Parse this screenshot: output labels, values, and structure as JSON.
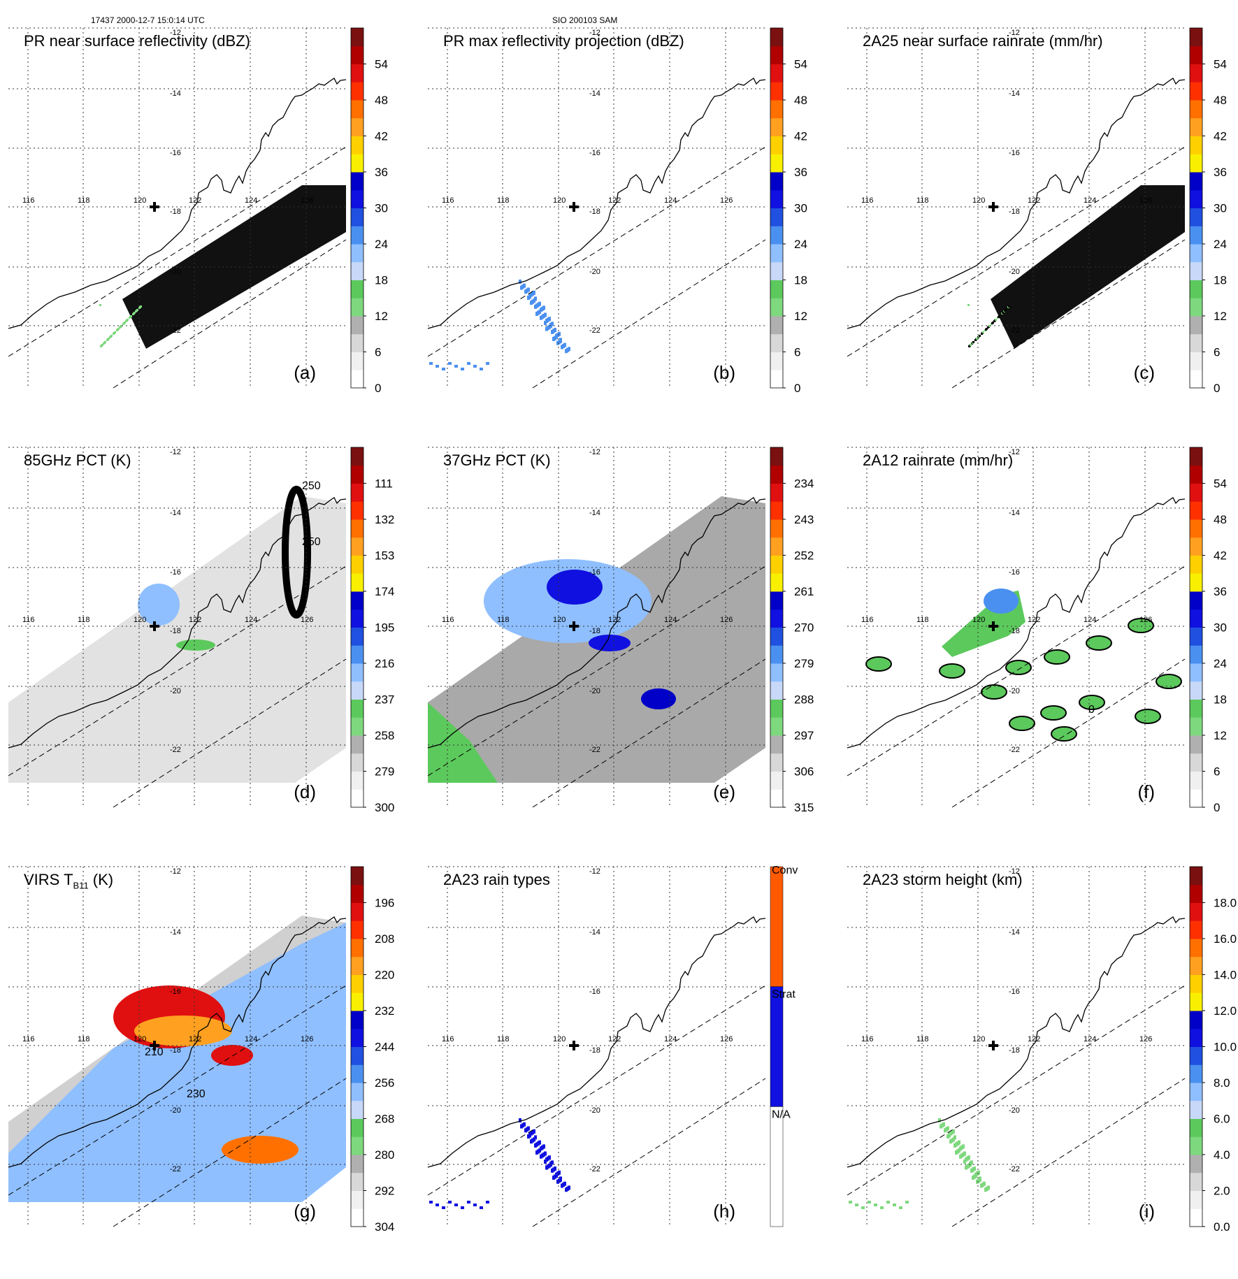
{
  "header": {
    "left": "17437 2000-12-7 15:0:14 UTC",
    "center": "SIO 200103 SAM"
  },
  "map": {
    "lon_ticks": [
      "116",
      "118",
      "120",
      "122",
      "124",
      "126"
    ],
    "lat_ticks": [
      "-12",
      "-14",
      "-16",
      "-18",
      "-20",
      "-22"
    ],
    "storm_marker": "plus-icon"
  },
  "chart_data": [
    {
      "id": "a",
      "type": "heatmap",
      "title": "PR near surface reflectivity (dBZ)",
      "label": "(a)",
      "colorbar": {
        "ticks": [
          "0",
          "6",
          "12",
          "18",
          "24",
          "30",
          "36",
          "42",
          "48",
          "54"
        ],
        "range": [
          0,
          60
        ]
      },
      "swath_blanked": true
    },
    {
      "id": "b",
      "type": "heatmap",
      "title": "PR max reflectivity projection (dBZ)",
      "label": "(b)",
      "colorbar": {
        "ticks": [
          "0",
          "6",
          "12",
          "18",
          "24",
          "30",
          "36",
          "42",
          "48",
          "54"
        ],
        "range": [
          0,
          60
        ]
      }
    },
    {
      "id": "c",
      "type": "heatmap",
      "title": "2A25 near surface rainrate (mm/hr)",
      "label": "(c)",
      "colorbar": {
        "ticks": [
          "0",
          "6",
          "12",
          "18",
          "24",
          "30",
          "36",
          "42",
          "48",
          "54"
        ],
        "range": [
          0,
          60
        ]
      },
      "swath_blanked": true
    },
    {
      "id": "d",
      "type": "heatmap",
      "title": "85GHz PCT (K)",
      "label": "(d)",
      "colorbar": {
        "ticks": [
          "300",
          "279",
          "258",
          "237",
          "216",
          "195",
          "174",
          "153",
          "132",
          "111"
        ],
        "range": [
          300,
          90
        ]
      },
      "contour_labels": [
        "250",
        "250"
      ]
    },
    {
      "id": "e",
      "type": "heatmap",
      "title": "37GHz PCT (K)",
      "label": "(e)",
      "colorbar": {
        "ticks": [
          "315",
          "306",
          "297",
          "288",
          "279",
          "270",
          "261",
          "252",
          "243",
          "234"
        ],
        "range": [
          315,
          225
        ]
      }
    },
    {
      "id": "f",
      "type": "heatmap",
      "title": "2A12 rainrate (mm/hr)",
      "label": "(f)",
      "colorbar": {
        "ticks": [
          "0",
          "6",
          "12",
          "18",
          "24",
          "30",
          "36",
          "42",
          "48",
          "54"
        ],
        "range": [
          0,
          60
        ]
      },
      "contour_labels": [
        "0"
      ]
    },
    {
      "id": "g",
      "type": "heatmap",
      "title": "VIRS T",
      "title_sub": "B11",
      "title_unit": " (K)",
      "label": "(g)",
      "colorbar": {
        "ticks": [
          "304",
          "292",
          "280",
          "268",
          "256",
          "244",
          "232",
          "220",
          "208",
          "196"
        ],
        "range": [
          304,
          184
        ]
      },
      "contour_labels": [
        "210",
        "230"
      ]
    },
    {
      "id": "h",
      "type": "heatmap",
      "title": "2A23 rain types",
      "label": "(h)",
      "colorbar": {
        "categorical": true,
        "categories": [
          "N/A",
          "Strat",
          "Conv"
        ]
      }
    },
    {
      "id": "i",
      "type": "heatmap",
      "title": "2A23 storm height (km)",
      "label": "(i)",
      "colorbar": {
        "ticks": [
          "0.0",
          "2.0",
          "4.0",
          "6.0",
          "8.0",
          "10.0",
          "12.0",
          "14.0",
          "16.0",
          "18.0"
        ],
        "range": [
          0,
          20
        ]
      }
    }
  ],
  "colors": {
    "scale": [
      "#ffffff",
      "#f0f0f0",
      "#d8d8d8",
      "#b0b0b0",
      "#7ed87e",
      "#5cc95c",
      "#c8d8f8",
      "#8fbfff",
      "#4a90f0",
      "#2050e0",
      "#1010e0",
      "#0000c8",
      "#f8f000",
      "#ffd000",
      "#ffa020",
      "#ff7000",
      "#ff3000",
      "#e01010",
      "#b00000",
      "#7a1010"
    ],
    "land": "#000000",
    "swath_fill": "#111111"
  }
}
